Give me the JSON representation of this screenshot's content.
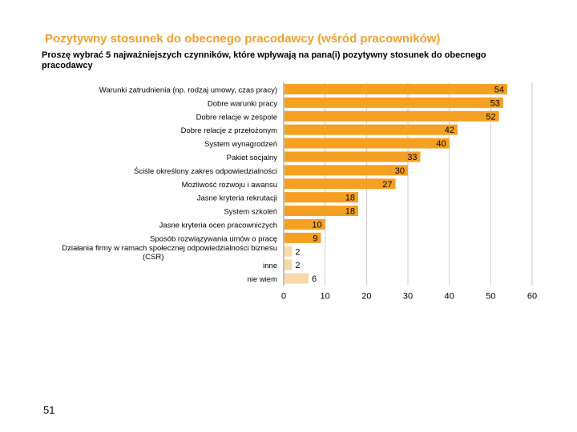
{
  "slide": {
    "title": "Pozytywny stosunek do obecnego pracodawcy (wśród pracowników)",
    "subtitle": "Proszę wybrać 5 najważniejszych czynników, które wpływają na pana(i) pozytywny stosunek do obecnego pracodawcy",
    "page_number": "51"
  },
  "colors": {
    "title": "#f0a030",
    "bar": "#f5a020",
    "bar_light": "#f9d8a8",
    "grid": "#c8c8c8"
  },
  "chart_data": {
    "type": "bar",
    "orientation": "horizontal",
    "title": "Pozytywny stosunek do obecnego pracodawcy (wśród pracowników)",
    "xlabel": "",
    "ylabel": "",
    "xlim": [
      0,
      60
    ],
    "xticks": [
      0,
      10,
      20,
      30,
      40,
      50,
      60
    ],
    "grid": true,
    "categories": [
      [
        "Warunki zatrudnienia (np. rodzaj umowy, czas pracy)"
      ],
      [
        "Dobre warunki pracy"
      ],
      [
        "Dobre relacje w zespole"
      ],
      [
        "Dobre relacje z przełożonym"
      ],
      [
        "System wynagrodzeń"
      ],
      [
        "Pakiet socjalny"
      ],
      [
        "Ściśle określony zakres odpowiedzialności"
      ],
      [
        "Możliwość rozwoju i awansu"
      ],
      [
        "Jasne kryteria rekrutacji"
      ],
      [
        "System szkoleń"
      ],
      [
        "Jasne kryteria ocen pracowniczych"
      ],
      [
        "Sposób rozwiązywania umów o pracę"
      ],
      [
        "Działania firmy w ramach społecznej odpowiedzialności biznesu",
        "(CSR)"
      ],
      [
        "inne"
      ],
      [
        "nie wiem"
      ]
    ],
    "values": [
      54,
      53,
      52,
      42,
      40,
      33,
      30,
      27,
      18,
      18,
      10,
      9,
      2,
      2,
      6
    ],
    "light": [
      false,
      false,
      false,
      false,
      false,
      false,
      false,
      false,
      false,
      false,
      false,
      false,
      true,
      true,
      true
    ]
  }
}
